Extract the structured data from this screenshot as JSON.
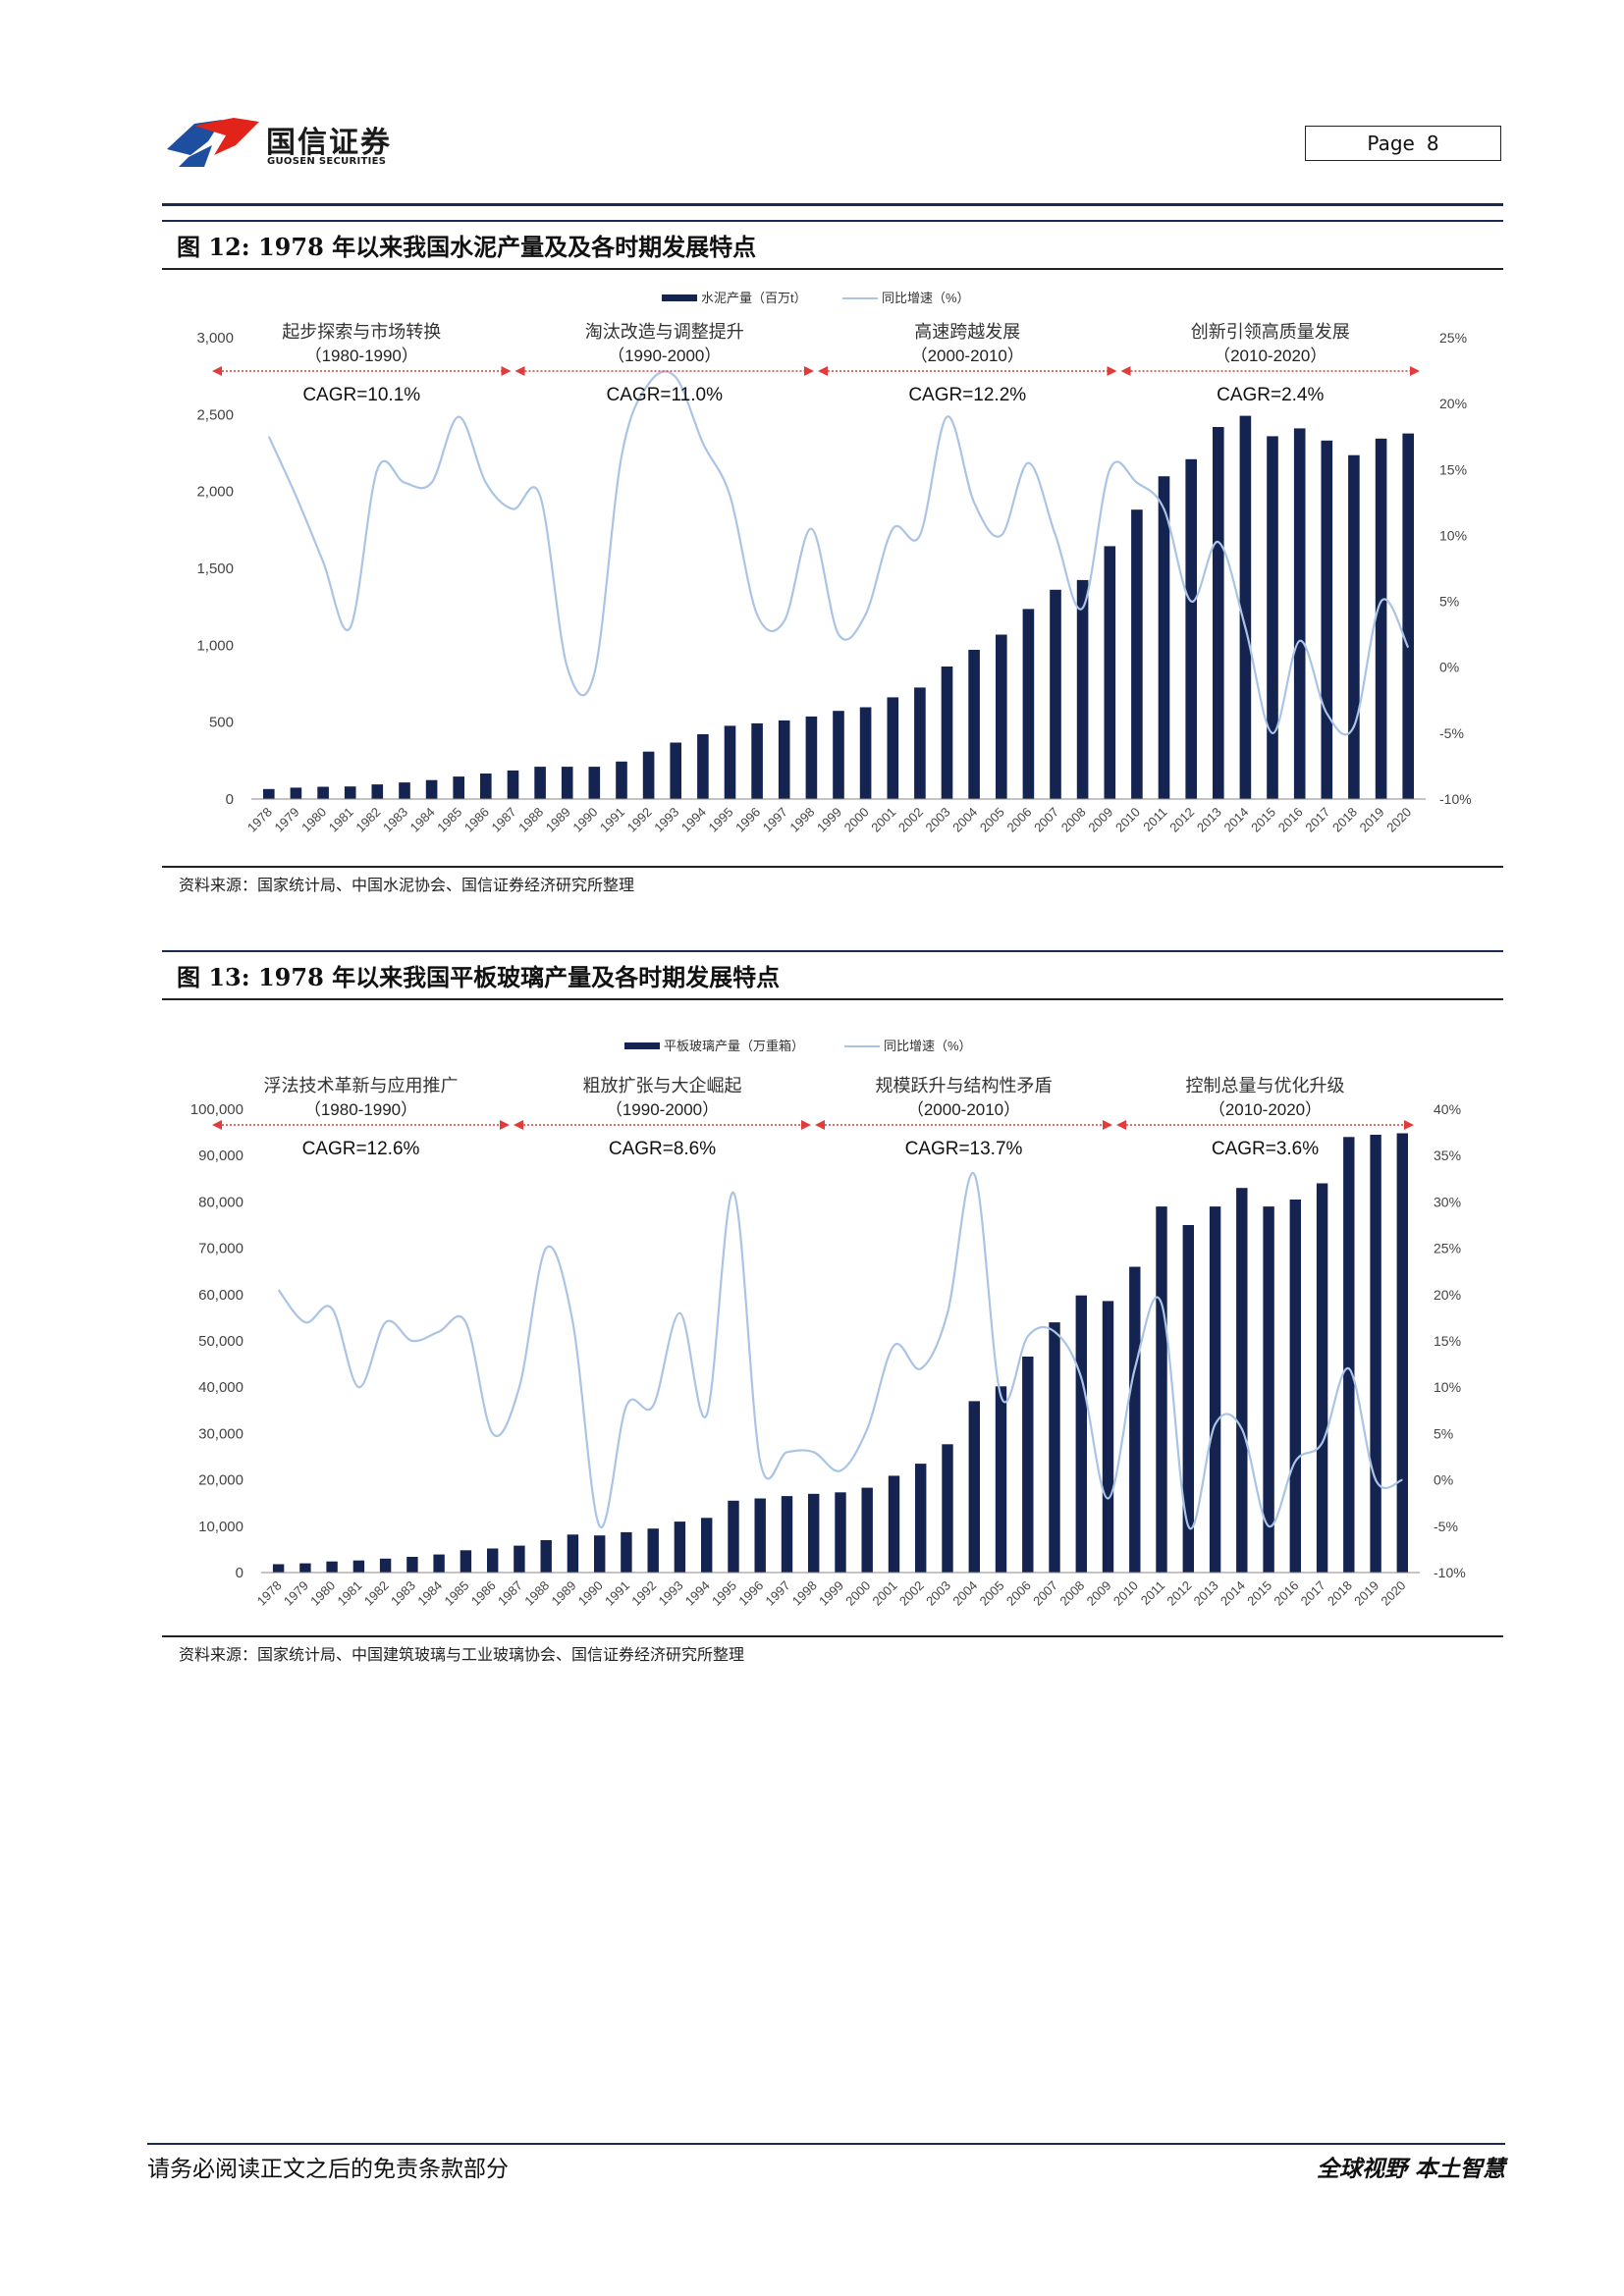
{
  "header": {
    "company_cn": "国信证券",
    "company_en": "GUOSEN SECURITIES",
    "page_label": "Page",
    "page_number": "8"
  },
  "figures": [
    {
      "label": "图 12:",
      "title": "1978 年以来我国水泥产量及及各时期发展特点",
      "source": "资料来源：国家统计局、中国水泥协会、国信证券经济研究所整理"
    },
    {
      "label": "图 13:",
      "title": "1978 年以来我国平板玻璃产量及各时期发展特点",
      "source": "资料来源：国家统计局、中国建筑玻璃与工业玻璃协会、国信证券经济研究所整理"
    }
  ],
  "footer": {
    "disclaimer": "请务必阅读正文之后的免责条款部分",
    "slogan": "全球视野  本土智慧"
  },
  "colors": {
    "bar": "#14234f",
    "line": "#aac4e6",
    "arrow": "#e23b3b",
    "rule": "#1b2a55",
    "logo_red": "#e2231a",
    "logo_blue": "#1e4ea0"
  },
  "chart_data": [
    {
      "type": "bar+line",
      "legend": [
        "水泥产量（百万t）",
        "同比增速（%）"
      ],
      "categories": [
        "1978",
        "1979",
        "1980",
        "1981",
        "1982",
        "1983",
        "1984",
        "1985",
        "1986",
        "1987",
        "1988",
        "1989",
        "1990",
        "1991",
        "1992",
        "1993",
        "1994",
        "1995",
        "1996",
        "1997",
        "1998",
        "1999",
        "2000",
        "2001",
        "2002",
        "2003",
        "2004",
        "2005",
        "2006",
        "2007",
        "2008",
        "2009",
        "2010",
        "2011",
        "2012",
        "2013",
        "2014",
        "2015",
        "2016",
        "2017",
        "2018",
        "2019",
        "2020"
      ],
      "series": [
        {
          "name": "水泥产量（百万t）",
          "axis": "left",
          "values": [
            65,
            74,
            80,
            82,
            95,
            108,
            123,
            146,
            166,
            186,
            210,
            210,
            210,
            244,
            308,
            367,
            421,
            476,
            492,
            511,
            537,
            573,
            597,
            661,
            725,
            862,
            970,
            1069,
            1236,
            1361,
            1424,
            1644,
            1882,
            2099,
            2210,
            2419,
            2492,
            2359,
            2410,
            2331,
            2236,
            2344,
            2377
          ]
        },
        {
          "name": "同比增速（%）",
          "axis": "right",
          "values": [
            17.5,
            13.0,
            8.0,
            3.0,
            15.0,
            14.0,
            14.0,
            19.0,
            14.0,
            12.0,
            13.0,
            0.0,
            -0.5,
            16.0,
            21.5,
            22.0,
            17.0,
            13.0,
            4.0,
            3.5,
            10.5,
            2.5,
            4.0,
            10.5,
            10.0,
            19.0,
            12.5,
            10.0,
            15.5,
            10.0,
            4.5,
            15.0,
            14.0,
            12.0,
            5.0,
            9.5,
            3.0,
            -5.0,
            2.0,
            -3.5,
            -4.5,
            5.0,
            1.5
          ]
        }
      ],
      "y_left": {
        "min": 0,
        "max": 3000,
        "ticks": [
          "0",
          "500",
          "1,000",
          "1,500",
          "2,000",
          "2,500",
          "3,000"
        ]
      },
      "y_right": {
        "min": -10,
        "max": 25,
        "ticks": [
          "-10%",
          "-5%",
          "0%",
          "5%",
          "10%",
          "15%",
          "20%",
          "25%"
        ]
      },
      "periods": [
        {
          "name": "起步探索与市场转换",
          "range": "（1980-1990）",
          "cagr": "CAGR=10.1%"
        },
        {
          "name": "淘汰改造与调整提升",
          "range": "（1990-2000）",
          "cagr": "CAGR=11.0%"
        },
        {
          "name": "高速跨越发展",
          "range": "（2000-2010）",
          "cagr": "CAGR=12.2%"
        },
        {
          "name": "创新引领高质量发展",
          "range": "（2010-2020）",
          "cagr": "CAGR=2.4%"
        }
      ]
    },
    {
      "type": "bar+line",
      "legend": [
        "平板玻璃产量（万重箱）",
        "同比增速（%）"
      ],
      "categories": [
        "1978",
        "1979",
        "1980",
        "1981",
        "1982",
        "1983",
        "1984",
        "1985",
        "1986",
        "1987",
        "1988",
        "1989",
        "1990",
        "1991",
        "1992",
        "1993",
        "1994",
        "1995",
        "1996",
        "1997",
        "1998",
        "1999",
        "2000",
        "2001",
        "2002",
        "2003",
        "2004",
        "2005",
        "2006",
        "2007",
        "2008",
        "2009",
        "2010",
        "2011",
        "2012",
        "2013",
        "2014",
        "2015",
        "2016",
        "2017",
        "2018",
        "2019",
        "2020"
      ],
      "series": [
        {
          "name": "平板玻璃产量（万重箱）",
          "axis": "left",
          "values": [
            1800,
            2000,
            2400,
            2600,
            3000,
            3400,
            3900,
            4800,
            5200,
            5800,
            7000,
            8200,
            8000,
            8700,
            9500,
            11000,
            11800,
            15500,
            16000,
            16500,
            17000,
            17300,
            18300,
            20900,
            23500,
            27700,
            37000,
            40200,
            46600,
            54000,
            59800,
            58600,
            66000,
            79000,
            75000,
            79000,
            83000,
            79000,
            80500,
            84000,
            94000,
            94500,
            94800
          ]
        },
        {
          "name": "同比增速（%）",
          "axis": "right",
          "values": [
            20.5,
            17.0,
            18.5,
            10.0,
            17.0,
            15.0,
            16.0,
            17.0,
            5.0,
            10.0,
            25.0,
            17.0,
            -5.0,
            8.0,
            8.0,
            18.0,
            7.0,
            31.0,
            2.0,
            3.0,
            3.0,
            1.0,
            5.5,
            14.5,
            12.0,
            18.0,
            33.0,
            9.0,
            15.5,
            16.0,
            11.0,
            -2.0,
            12.0,
            19.0,
            -5.0,
            6.0,
            5.5,
            -5.0,
            2.0,
            4.0,
            12.0,
            0.0,
            0.0
          ]
        }
      ],
      "y_left": {
        "min": 0,
        "max": 100000,
        "ticks": [
          "0",
          "10,000",
          "20,000",
          "30,000",
          "40,000",
          "50,000",
          "60,000",
          "70,000",
          "80,000",
          "90,000",
          "100,000"
        ]
      },
      "y_right": {
        "min": -10,
        "max": 40,
        "ticks": [
          "-10%",
          "-5%",
          "0%",
          "5%",
          "10%",
          "15%",
          "20%",
          "25%",
          "30%",
          "35%",
          "40%"
        ]
      },
      "periods": [
        {
          "name": "浮法技术革新与应用推广",
          "range": "（1980-1990）",
          "cagr": "CAGR=12.6%"
        },
        {
          "name": "粗放扩张与大企崛起",
          "range": "（1990-2000）",
          "cagr": "CAGR=8.6%"
        },
        {
          "name": "规模跃升与结构性矛盾",
          "range": "（2000-2010）",
          "cagr": "CAGR=13.7%"
        },
        {
          "name": "控制总量与优化升级",
          "range": "（2010-2020）",
          "cagr": "CAGR=3.6%"
        }
      ]
    }
  ]
}
